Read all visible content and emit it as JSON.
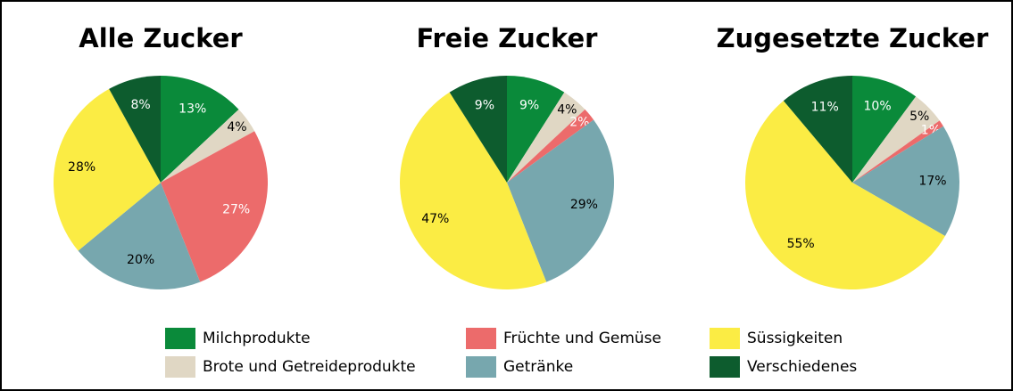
{
  "chart_data": [
    {
      "type": "pie",
      "title": "Alle Zucker",
      "categories": [
        "Milchprodukte",
        "Brote und Getreideprodukte",
        "Früchte und Gemüse",
        "Getränke",
        "Süssigkeiten",
        "Verschiedenes"
      ],
      "values": [
        13,
        4,
        27,
        20,
        28,
        8
      ],
      "value_labels": [
        "13%",
        "4%",
        "27%",
        "20%",
        "28%",
        "8%"
      ],
      "colors": [
        "#0a8a3a",
        "#e0d7c4",
        "#ec6b6b",
        "#77a7ae",
        "#fbec44",
        "#0d5c2e"
      ]
    },
    {
      "type": "pie",
      "title": "Freie Zucker",
      "categories": [
        "Milchprodukte",
        "Brote und Getreideprodukte",
        "Früchte und Gemüse",
        "Getränke",
        "Süssigkeiten",
        "Verschiedenes"
      ],
      "values": [
        9,
        4,
        2,
        29,
        47,
        9
      ],
      "value_labels": [
        "9%",
        "4%",
        "2%",
        "29%",
        "47%",
        "9%"
      ],
      "colors": [
        "#0a8a3a",
        "#e0d7c4",
        "#ec6b6b",
        "#77a7ae",
        "#fbec44",
        "#0d5c2e"
      ]
    },
    {
      "type": "pie",
      "title": "Zugesetzte Zucker",
      "categories": [
        "Milchprodukte",
        "Brote und Getreideprodukte",
        "Früchte und Gemüse",
        "Getränke",
        "Süssigkeiten",
        "Verschiedenes"
      ],
      "values": [
        10,
        5,
        1,
        17,
        55,
        11
      ],
      "value_labels": [
        "10%",
        "5%",
        "1%",
        "17%",
        "55%",
        "11%"
      ],
      "colors": [
        "#0a8a3a",
        "#e0d7c4",
        "#ec6b6b",
        "#77a7ae",
        "#fbec44",
        "#0d5c2e"
      ]
    }
  ]
}
